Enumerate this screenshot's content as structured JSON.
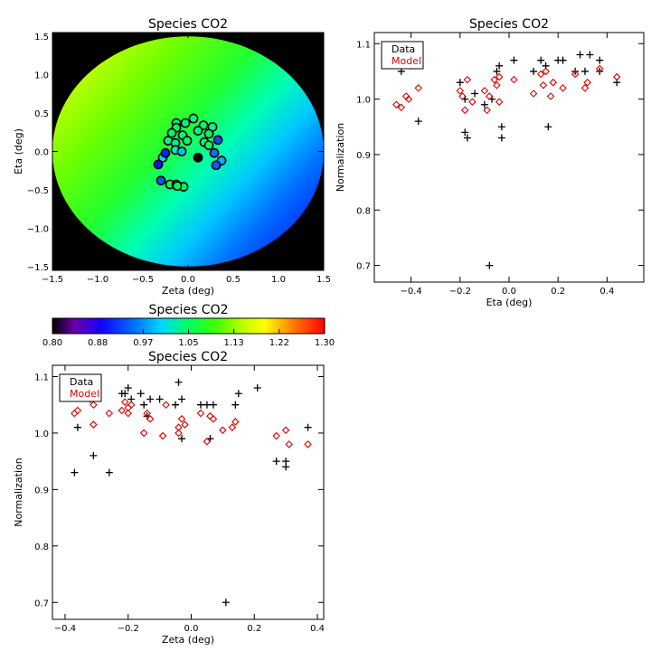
{
  "chart_data": [
    {
      "type": "scatter",
      "id": "map",
      "title": "Species CO2",
      "xlabel": "Zeta (deg)",
      "ylabel": "Eta (deg)",
      "xlim": [
        -1.5,
        1.5
      ],
      "ylim": [
        -1.55,
        1.55
      ],
      "xticks": [
        -1.5,
        -1.0,
        -0.5,
        0.0,
        0.5,
        1.0,
        1.5
      ],
      "yticks": [
        -1.5,
        -1.0,
        -0.5,
        0.0,
        0.5,
        1.0,
        1.5
      ],
      "background": "diagonal colour gradient over disk of radius 1.5 (green/yellow upper-left to blue lower-right)",
      "points": [
        {
          "x": 0.06,
          "y": 0.43,
          "v": 1.04
        },
        {
          "x": -0.03,
          "y": 0.37,
          "v": 1.04
        },
        {
          "x": -0.13,
          "y": 0.37,
          "v": 1.04
        },
        {
          "x": -0.13,
          "y": 0.31,
          "v": 1.05
        },
        {
          "x": 0.17,
          "y": 0.34,
          "v": 1.05
        },
        {
          "x": 0.27,
          "y": 0.32,
          "v": 1.04
        },
        {
          "x": -0.18,
          "y": 0.24,
          "v": 1.05
        },
        {
          "x": 0.11,
          "y": 0.27,
          "v": 1.04
        },
        {
          "x": 0.23,
          "y": 0.23,
          "v": 1.05
        },
        {
          "x": -0.06,
          "y": 0.21,
          "v": 1.04
        },
        {
          "x": -0.22,
          "y": 0.14,
          "v": 1.04
        },
        {
          "x": -0.01,
          "y": 0.14,
          "v": 1.05
        },
        {
          "x": 0.18,
          "y": 0.12,
          "v": 1.04
        },
        {
          "x": -0.14,
          "y": 0.11,
          "v": 1.03
        },
        {
          "x": 0.33,
          "y": 0.15,
          "v": 0.93
        },
        {
          "x": 0.23,
          "y": 0.08,
          "v": 1.05
        },
        {
          "x": -0.14,
          "y": 0.02,
          "v": 1.02
        },
        {
          "x": -0.07,
          "y": 0.0,
          "v": 0.99
        },
        {
          "x": 0.29,
          "y": -0.02,
          "v": 0.95
        },
        {
          "x": -0.28,
          "y": -0.08,
          "v": 1.0
        },
        {
          "x": -0.25,
          "y": -0.02,
          "v": 0.91
        },
        {
          "x": 0.11,
          "y": -0.08,
          "v": 0.7
        },
        {
          "x": 0.37,
          "y": -0.12,
          "v": 0.98
        },
        {
          "x": -0.33,
          "y": -0.17,
          "v": 0.9
        },
        {
          "x": 0.31,
          "y": -0.18,
          "v": 0.94
        },
        {
          "x": -0.3,
          "y": -0.38,
          "v": 0.94
        },
        {
          "x": -0.2,
          "y": -0.43,
          "v": 1.06
        },
        {
          "x": -0.13,
          "y": -0.43,
          "v": 1.06
        },
        {
          "x": -0.05,
          "y": -0.46,
          "v": 1.05
        },
        {
          "x": -0.12,
          "y": -0.45,
          "v": 1.05
        }
      ]
    },
    {
      "type": "scatter",
      "id": "eta",
      "title": "Species CO2",
      "xlabel": "Eta (deg)",
      "ylabel": "Normalization",
      "xlim": [
        -0.55,
        0.55
      ],
      "ylim": [
        0.67,
        1.12
      ],
      "xticks": [
        -0.4,
        -0.2,
        0.0,
        0.2,
        0.4
      ],
      "yticks": [
        0.7,
        0.8,
        0.9,
        1.0,
        1.1
      ],
      "legend": {
        "placement": "top-left",
        "entries": [
          "Data",
          "Model"
        ]
      },
      "series": [
        {
          "name": "Data",
          "marker": "plus",
          "color": "#000000",
          "points": [
            [
              -0.46,
              1.08
            ],
            [
              -0.44,
              1.05
            ],
            [
              -0.4,
              1.06
            ],
            [
              -0.37,
              0.96
            ],
            [
              -0.2,
              1.03
            ],
            [
              -0.18,
              1.0
            ],
            [
              -0.18,
              0.94
            ],
            [
              -0.17,
              0.93
            ],
            [
              -0.14,
              1.01
            ],
            [
              -0.1,
              0.99
            ],
            [
              -0.08,
              0.7
            ],
            [
              -0.07,
              1.0
            ],
            [
              -0.05,
              1.05
            ],
            [
              -0.04,
              1.06
            ],
            [
              -0.03,
              0.93
            ],
            [
              -0.03,
              0.95
            ],
            [
              0.02,
              1.07
            ],
            [
              0.1,
              1.05
            ],
            [
              0.13,
              1.07
            ],
            [
              0.15,
              1.06
            ],
            [
              0.16,
              0.95
            ],
            [
              0.2,
              1.07
            ],
            [
              0.22,
              1.07
            ],
            [
              0.27,
              1.05
            ],
            [
              0.29,
              1.08
            ],
            [
              0.31,
              1.05
            ],
            [
              0.33,
              1.08
            ],
            [
              0.37,
              1.07
            ],
            [
              0.37,
              1.05
            ],
            [
              0.44,
              1.03
            ]
          ]
        },
        {
          "name": "Model",
          "marker": "diamond",
          "color": "#e00000",
          "points": [
            [
              -0.46,
              0.99
            ],
            [
              -0.44,
              0.985
            ],
            [
              -0.42,
              1.005
            ],
            [
              -0.41,
              1.0
            ],
            [
              -0.37,
              1.02
            ],
            [
              -0.2,
              1.015
            ],
            [
              -0.19,
              1.005
            ],
            [
              -0.18,
              0.98
            ],
            [
              -0.17,
              1.035
            ],
            [
              -0.15,
              0.995
            ],
            [
              -0.1,
              1.015
            ],
            [
              -0.09,
              0.98
            ],
            [
              -0.08,
              1.005
            ],
            [
              -0.06,
              1.035
            ],
            [
              -0.05,
              1.025
            ],
            [
              -0.04,
              1.04
            ],
            [
              -0.04,
              0.995
            ],
            [
              0.02,
              1.035
            ],
            [
              0.1,
              1.01
            ],
            [
              0.13,
              1.045
            ],
            [
              0.14,
              1.025
            ],
            [
              0.15,
              1.05
            ],
            [
              0.17,
              1.005
            ],
            [
              0.18,
              1.03
            ],
            [
              0.22,
              1.02
            ],
            [
              0.27,
              1.045
            ],
            [
              0.31,
              1.02
            ],
            [
              0.32,
              1.03
            ],
            [
              0.37,
              1.055
            ],
            [
              0.44,
              1.04
            ]
          ]
        }
      ]
    },
    {
      "type": "heatmap",
      "id": "colorbar",
      "title": "Species CO2",
      "colormap": "rainbow",
      "ticks": [
        "0.80",
        "0.88",
        "0.97",
        "1.05",
        "1.13",
        "1.22",
        "1.30"
      ],
      "range": [
        0.8,
        1.3
      ]
    },
    {
      "type": "scatter",
      "id": "zeta",
      "title": "Species CO2",
      "xlabel": "Zeta (deg)",
      "ylabel": "Normalization",
      "xlim": [
        -0.44,
        0.42
      ],
      "ylim": [
        0.67,
        1.12
      ],
      "xticks": [
        -0.4,
        -0.2,
        0.0,
        0.2,
        0.4
      ],
      "yticks": [
        0.7,
        0.8,
        0.9,
        1.0,
        1.1
      ],
      "legend": {
        "placement": "top-left",
        "entries": [
          "Data",
          "Model"
        ]
      },
      "series": [
        {
          "name": "Data",
          "marker": "plus",
          "color": "#000000",
          "points": [
            [
              -0.37,
              0.93
            ],
            [
              -0.36,
              1.01
            ],
            [
              -0.32,
              1.06
            ],
            [
              -0.31,
              0.96
            ],
            [
              -0.26,
              0.93
            ],
            [
              -0.22,
              1.07
            ],
            [
              -0.21,
              1.07
            ],
            [
              -0.2,
              1.08
            ],
            [
              -0.19,
              1.06
            ],
            [
              -0.16,
              1.07
            ],
            [
              -0.15,
              1.05
            ],
            [
              -0.14,
              1.03
            ],
            [
              -0.13,
              1.06
            ],
            [
              -0.1,
              1.06
            ],
            [
              -0.05,
              1.05
            ],
            [
              -0.04,
              1.09
            ],
            [
              -0.03,
              1.06
            ],
            [
              -0.03,
              0.99
            ],
            [
              0.03,
              1.05
            ],
            [
              0.05,
              1.05
            ],
            [
              0.06,
              0.99
            ],
            [
              0.07,
              1.05
            ],
            [
              0.11,
              0.7
            ],
            [
              0.14,
              1.05
            ],
            [
              0.15,
              1.07
            ],
            [
              0.21,
              1.08
            ],
            [
              0.27,
              0.95
            ],
            [
              0.3,
              0.95
            ],
            [
              0.3,
              0.94
            ],
            [
              0.37,
              1.01
            ]
          ]
        },
        {
          "name": "Model",
          "marker": "diamond",
          "color": "#e00000",
          "points": [
            [
              -0.37,
              1.035
            ],
            [
              -0.36,
              1.04
            ],
            [
              -0.31,
              1.05
            ],
            [
              -0.31,
              1.015
            ],
            [
              -0.26,
              1.035
            ],
            [
              -0.22,
              1.04
            ],
            [
              -0.21,
              1.055
            ],
            [
              -0.2,
              1.045
            ],
            [
              -0.2,
              1.035
            ],
            [
              -0.19,
              1.05
            ],
            [
              -0.15,
              1.0
            ],
            [
              -0.14,
              1.035
            ],
            [
              -0.13,
              1.025
            ],
            [
              -0.09,
              0.995
            ],
            [
              -0.08,
              1.05
            ],
            [
              -0.04,
              1.01
            ],
            [
              -0.04,
              1.0
            ],
            [
              -0.03,
              1.025
            ],
            [
              -0.02,
              1.015
            ],
            [
              0.03,
              1.035
            ],
            [
              0.05,
              0.985
            ],
            [
              0.06,
              1.03
            ],
            [
              0.07,
              1.025
            ],
            [
              0.1,
              1.005
            ],
            [
              0.13,
              1.01
            ],
            [
              0.14,
              1.02
            ],
            [
              0.27,
              0.995
            ],
            [
              0.3,
              1.005
            ],
            [
              0.31,
              0.98
            ],
            [
              0.37,
              0.98
            ]
          ]
        }
      ]
    }
  ]
}
